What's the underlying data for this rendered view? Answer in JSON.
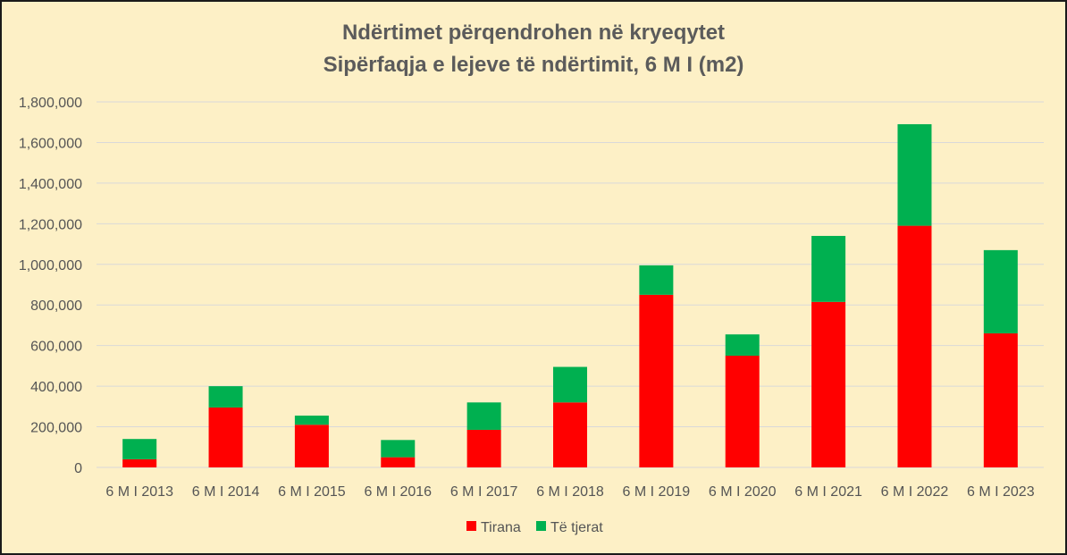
{
  "chart_data": {
    "type": "bar",
    "stacked": true,
    "title": "Ndërtimet përqendrohen në kryeqytet",
    "subtitle": "Sipërfaqja e lejeve të ndërtimit, 6 M I (m2)",
    "xlabel": "",
    "ylabel": "",
    "ylim": [
      0,
      1800000
    ],
    "yticks": [
      "0",
      "200,000",
      "400,000",
      "600,000",
      "800,000",
      "1,000,000",
      "1,200,000",
      "1,400,000",
      "1,600,000",
      "1,800,000"
    ],
    "ytick_values": [
      0,
      200000,
      400000,
      600000,
      800000,
      1000000,
      1200000,
      1400000,
      1600000,
      1800000
    ],
    "grid": true,
    "legend_position": "bottom",
    "categories": [
      "6 M I 2013",
      "6 M I 2014",
      "6 M I 2015",
      "6 M I 2016",
      "6 M I 2017",
      "6 M I 2018",
      "6 M I 2019",
      "6 M I 2020",
      "6 M I 2021",
      "6 M I 2022",
      "6 M I 2023"
    ],
    "series": [
      {
        "name": "Tirana",
        "color": "#ff0000",
        "values": [
          40000,
          295000,
          210000,
          50000,
          185000,
          320000,
          850000,
          550000,
          815000,
          1190000,
          660000
        ]
      },
      {
        "name": "Të tjerat",
        "color": "#00b050",
        "values": [
          100000,
          105000,
          45000,
          85000,
          135000,
          175000,
          145000,
          105000,
          325000,
          500000,
          410000
        ]
      }
    ]
  },
  "colors": {
    "background": "#fdf0c6",
    "grid": "#d9d9d9",
    "text": "#555555",
    "title": "#5b5b5b"
  }
}
